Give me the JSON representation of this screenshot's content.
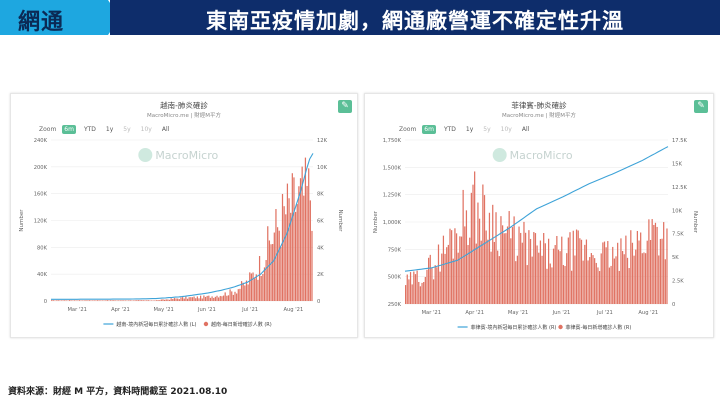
{
  "header": {
    "tag": "網通",
    "title": "東南亞疫情加劇，網通廠營運不確定性升溫"
  },
  "footer": {
    "source": "資料來源：財經 M 平方，資料時間截至 2021.08.10"
  },
  "zoom": {
    "label": "Zoom",
    "buttons": [
      "6m",
      "YTD",
      "1y",
      "5y",
      "10y",
      "All"
    ],
    "active": "6m"
  },
  "watermark": "MacroMicro",
  "colors": {
    "line": "#3ea3d8",
    "bar": "#e07262",
    "accent": "#5bbf97",
    "header_dark": "#0e2d6b",
    "header_light": "#1ea7e0"
  },
  "chart_data": [
    {
      "type": "bar",
      "title": "越南-肺炎確診",
      "subtitle": "MacroMicro.me | 財經M平方",
      "x_ticks": [
        "Mar '21",
        "Apr '21",
        "May '21",
        "Jun '21",
        "Jul '21",
        "Aug '21"
      ],
      "y_left": {
        "label": "Number",
        "ticks": [
          "0",
          "40K",
          "80K",
          "120K",
          "160K",
          "200K",
          "240K"
        ],
        "range": [
          0,
          240000
        ]
      },
      "y_right": {
        "label": "Number",
        "ticks": [
          "0",
          "2K",
          "4K",
          "6K",
          "8K",
          "10K",
          "12K"
        ],
        "range": [
          0,
          12000
        ]
      },
      "series": [
        {
          "name": "越南-境內新冠每日累計確診人數 (L)",
          "kind": "line",
          "axis": "left",
          "points": [
            [
              0,
              2500
            ],
            [
              0.1,
              2600
            ],
            [
              0.2,
              2700
            ],
            [
              0.3,
              2900
            ],
            [
              0.4,
              3600
            ],
            [
              0.5,
              6500
            ],
            [
              0.6,
              12000
            ],
            [
              0.65,
              16000
            ],
            [
              0.7,
              21000
            ],
            [
              0.75,
              28000
            ],
            [
              0.8,
              40000
            ],
            [
              0.85,
              60000
            ],
            [
              0.9,
              100000
            ],
            [
              0.95,
              160000
            ],
            [
              0.985,
              210000
            ],
            [
              1.0,
              220000
            ]
          ]
        },
        {
          "name": "越南-每日新增確診人數 (R)",
          "kind": "bar",
          "axis": "right",
          "points": [
            [
              0.4,
              50
            ],
            [
              0.45,
              150
            ],
            [
              0.5,
              250
            ],
            [
              0.55,
              300
            ],
            [
              0.6,
              350
            ],
            [
              0.65,
              500
            ],
            [
              0.7,
              800
            ],
            [
              0.75,
              1500
            ],
            [
              0.8,
              3000
            ],
            [
              0.85,
              5500
            ],
            [
              0.9,
              7500
            ],
            [
              0.95,
              8500
            ],
            [
              1.0,
              9200
            ]
          ]
        }
      ]
    },
    {
      "type": "bar",
      "title": "菲律賓-肺炎確診",
      "subtitle": "MacroMicro.me | 財經M平方",
      "x_ticks": [
        "Mar '21",
        "Apr '21",
        "May '21",
        "Jun '21",
        "Jul '21",
        "Aug '21"
      ],
      "y_left": {
        "label": "Number",
        "ticks": [
          "250K",
          "500K",
          "750K",
          "1,000K",
          "1,250K",
          "1,500K",
          "1,750K"
        ],
        "range": [
          250000,
          1750000
        ]
      },
      "y_right": {
        "label": "Number",
        "ticks": [
          "0",
          "2.5K",
          "5K",
          "7.5K",
          "10K",
          "12.5K",
          "15K",
          "17.5K"
        ],
        "range": [
          0,
          17500
        ]
      },
      "series": [
        {
          "name": "菲律賓-境內新冠每日累計確診人數 (R)",
          "kind": "line",
          "axis": "left",
          "points": [
            [
              0,
              550000
            ],
            [
              0.1,
              580000
            ],
            [
              0.2,
              650000
            ],
            [
              0.3,
              800000
            ],
            [
              0.4,
              950000
            ],
            [
              0.5,
              1120000
            ],
            [
              0.6,
              1230000
            ],
            [
              0.7,
              1350000
            ],
            [
              0.8,
              1450000
            ],
            [
              0.9,
              1560000
            ],
            [
              1.0,
              1690000
            ]
          ]
        },
        {
          "name": "菲律賓-每日新增確診人數 (R)",
          "kind": "bar",
          "axis": "right",
          "points": [
            [
              0,
              2500
            ],
            [
              0.05,
              3200
            ],
            [
              0.1,
              4500
            ],
            [
              0.15,
              6500
            ],
            [
              0.2,
              9000
            ],
            [
              0.25,
              12000
            ],
            [
              0.3,
              10500
            ],
            [
              0.35,
              9500
            ],
            [
              0.4,
              8000
            ],
            [
              0.45,
              7200
            ],
            [
              0.5,
              6500
            ],
            [
              0.55,
              5800
            ],
            [
              0.6,
              6000
            ],
            [
              0.65,
              6500
            ],
            [
              0.7,
              6200
            ],
            [
              0.75,
              5800
            ],
            [
              0.8,
              5500
            ],
            [
              0.85,
              6000
            ],
            [
              0.9,
              7500
            ],
            [
              0.95,
              9000
            ],
            [
              1.0,
              8500
            ]
          ]
        }
      ]
    }
  ]
}
